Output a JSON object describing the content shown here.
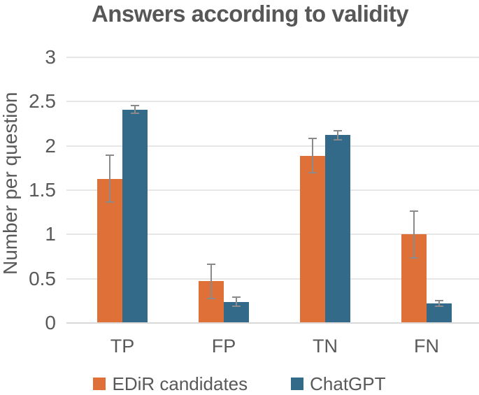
{
  "chart_data": {
    "type": "bar",
    "title": "Answers according to validity",
    "xlabel": "",
    "ylabel": "Number per question",
    "categories": [
      "TP",
      "FP",
      "TN",
      "FN"
    ],
    "series": [
      {
        "name": "EDiR candidates",
        "color": "#DF7038",
        "values": [
          1.63,
          0.47,
          1.89,
          1.0
        ],
        "errors": [
          0.27,
          0.2,
          0.2,
          0.27
        ]
      },
      {
        "name": "ChatGPT",
        "color": "#336A8A",
        "values": [
          2.41,
          0.24,
          2.12,
          0.22
        ],
        "errors": [
          0.05,
          0.06,
          0.06,
          0.04
        ]
      }
    ],
    "ylim": [
      0,
      3
    ],
    "yticks": [
      "0",
      "0.5",
      "1",
      "1.5",
      "2",
      "2.5",
      "3"
    ],
    "grid": true,
    "error_bars": true,
    "legend_position": "bottom"
  },
  "styles": {
    "title_color": "#575757",
    "axis_text_color": "#595959",
    "gridline_color": "#E6E6E6",
    "axis_line_color": "#D9D9D9",
    "error_bar_color": "#8A8A8A",
    "background": "#FFFFFF"
  }
}
